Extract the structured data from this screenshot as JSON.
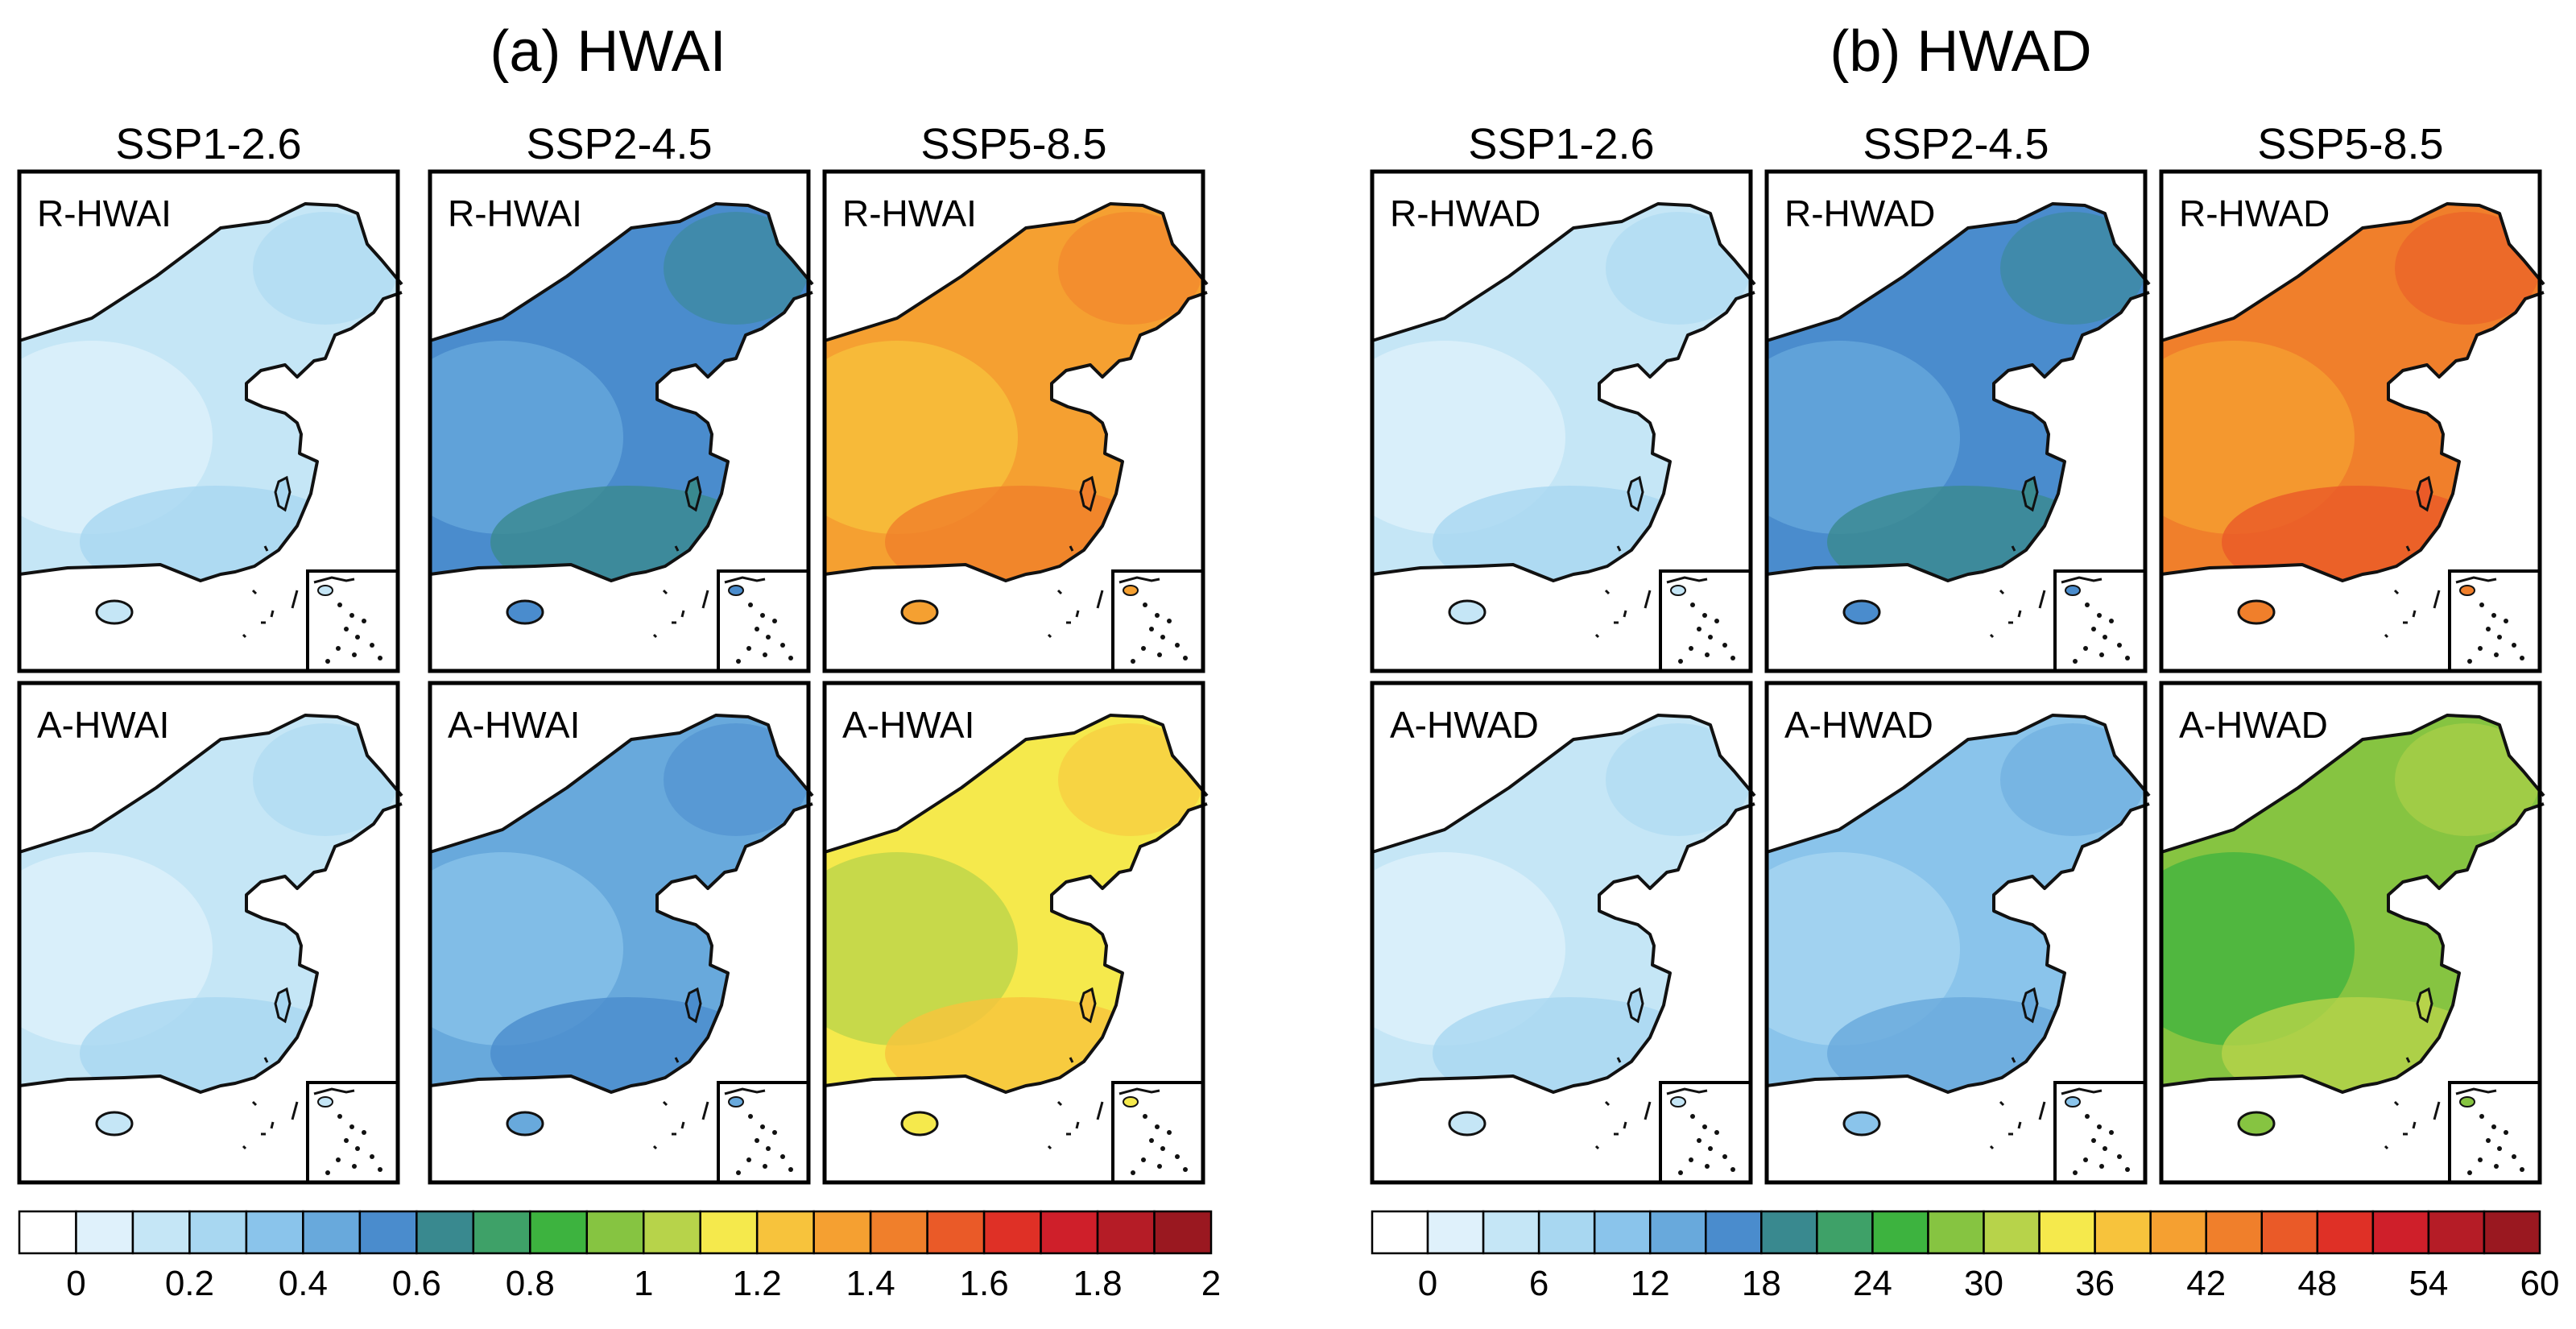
{
  "chart_data": [
    {
      "type": "heatmap",
      "title": "(a) HWAI",
      "scenarios": [
        "SSP1-2.6",
        "SSP2-4.5",
        "SSP5-8.5"
      ],
      "rows": [
        "R-HWAI",
        "A-HWAI"
      ],
      "approx_typical_values": {
        "R-HWAI": [
          0.15,
          0.5,
          1.4
        ],
        "A-HWAI": [
          0.15,
          0.45,
          1.2
        ]
      },
      "colorbar": {
        "min": 0,
        "max": 2.1,
        "step": 0.1,
        "tick_values": [
          0,
          0.2,
          0.4,
          0.6,
          0.8,
          1,
          1.2,
          1.4,
          1.6,
          1.8,
          2
        ],
        "tick_labels": [
          "0",
          "0.2",
          "0.4",
          "0.6",
          "0.8",
          "1",
          "1.2",
          "1.4",
          "1.6",
          "1.8",
          "2"
        ]
      }
    },
    {
      "type": "heatmap",
      "title": "(b) HWAD",
      "scenarios": [
        "SSP1-2.6",
        "SSP2-4.5",
        "SSP5-8.5"
      ],
      "rows": [
        "R-HWAD",
        "A-HWAD"
      ],
      "approx_typical_values": {
        "R-HWAD": [
          3,
          15,
          42
        ],
        "A-HWAD": [
          3,
          10,
          28
        ]
      },
      "colorbar": {
        "min": 0,
        "max": 63,
        "step": 3,
        "tick_values": [
          0,
          6,
          12,
          18,
          24,
          30,
          36,
          42,
          48,
          54,
          60
        ],
        "tick_labels": [
          "0",
          "6",
          "12",
          "18",
          "24",
          "30",
          "36",
          "42",
          "48",
          "54",
          "60"
        ]
      }
    }
  ],
  "colors": {
    "scale": [
      "#ffffff",
      "#dff1fb",
      "#c5e6f6",
      "#a8d7f1",
      "#8ac4eb",
      "#68a9dc",
      "#4a8ccd",
      "#39898f",
      "#3ea168",
      "#3db33f",
      "#86c441",
      "#b7d34a",
      "#f5e94c",
      "#f7c33c",
      "#f5a031",
      "#f07f2b",
      "#ea5a28",
      "#df3026",
      "#cf1f2a",
      "#b51c26",
      "#9a1820"
    ],
    "coast": "#111111",
    "frame": "#000000"
  }
}
